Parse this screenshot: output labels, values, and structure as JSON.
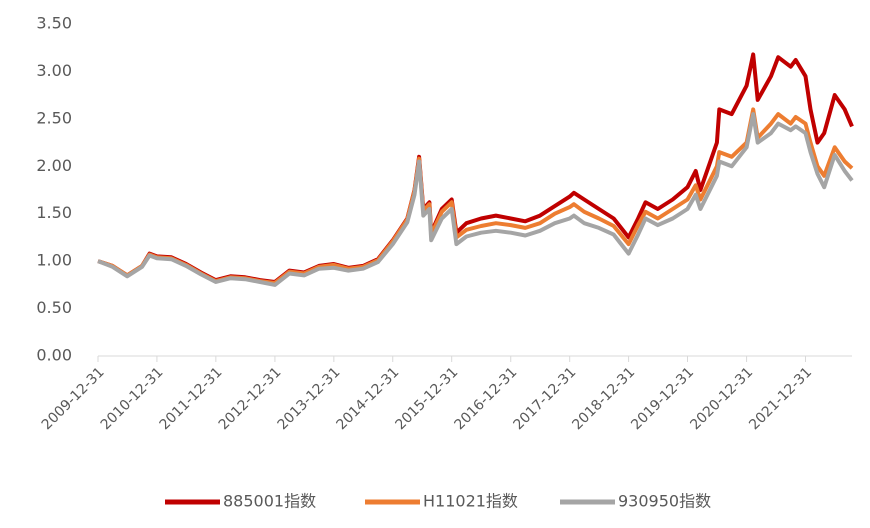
{
  "chart_data": {
    "type": "line",
    "x": [
      "2009-12-31",
      "2010-03-31",
      "2010-06-30",
      "2010-09-30",
      "2010-11-15",
      "2010-12-31",
      "2011-03-31",
      "2011-06-30",
      "2011-09-30",
      "2011-12-31",
      "2012-03-31",
      "2012-06-30",
      "2012-09-30",
      "2012-12-31",
      "2013-03-31",
      "2013-06-30",
      "2013-09-30",
      "2013-12-31",
      "2014-03-31",
      "2014-06-30",
      "2014-09-30",
      "2014-12-31",
      "2015-03-31",
      "2015-05-15",
      "2015-06-12",
      "2015-07-08",
      "2015-08-15",
      "2015-08-26",
      "2015-10-31",
      "2015-12-31",
      "2016-01-29",
      "2016-03-31",
      "2016-06-30",
      "2016-09-30",
      "2016-12-31",
      "2017-03-31",
      "2017-06-30",
      "2017-09-30",
      "2017-12-31",
      "2018-01-26",
      "2018-03-31",
      "2018-06-30",
      "2018-09-30",
      "2018-12-31",
      "2019-02-28",
      "2019-04-15",
      "2019-06-30",
      "2019-09-30",
      "2019-12-31",
      "2020-02-20",
      "2020-03-20",
      "2020-06-30",
      "2020-07-15",
      "2020-09-30",
      "2020-12-31",
      "2021-02-10",
      "2021-03-10",
      "2021-05-31",
      "2021-07-15",
      "2021-09-30",
      "2021-10-31",
      "2021-12-31",
      "2022-01-31",
      "2022-03-15",
      "2022-04-26",
      "2022-06-30",
      "2022-08-31",
      "2022-10-15"
    ],
    "series": [
      {
        "name": "885001指数",
        "color": "#c00000",
        "values": [
          1.0,
          0.95,
          0.85,
          0.95,
          1.08,
          1.05,
          1.04,
          0.97,
          0.88,
          0.8,
          0.84,
          0.83,
          0.8,
          0.78,
          0.9,
          0.88,
          0.95,
          0.97,
          0.93,
          0.95,
          1.02,
          1.22,
          1.45,
          1.75,
          2.1,
          1.55,
          1.62,
          1.3,
          1.55,
          1.65,
          1.3,
          1.4,
          1.45,
          1.48,
          1.45,
          1.42,
          1.48,
          1.58,
          1.68,
          1.72,
          1.65,
          1.55,
          1.45,
          1.25,
          1.45,
          1.62,
          1.55,
          1.65,
          1.78,
          1.95,
          1.75,
          2.25,
          2.6,
          2.55,
          2.85,
          3.18,
          2.7,
          2.95,
          3.15,
          3.05,
          3.12,
          2.95,
          2.6,
          2.25,
          2.35,
          2.75,
          2.6,
          2.42
        ]
      },
      {
        "name": "H11021指数",
        "color": "#ed7d31",
        "values": [
          1.0,
          0.95,
          0.85,
          0.95,
          1.07,
          1.04,
          1.03,
          0.96,
          0.87,
          0.79,
          0.83,
          0.82,
          0.79,
          0.77,
          0.89,
          0.87,
          0.94,
          0.96,
          0.92,
          0.94,
          1.01,
          1.21,
          1.44,
          1.74,
          2.08,
          1.53,
          1.6,
          1.28,
          1.52,
          1.62,
          1.25,
          1.33,
          1.37,
          1.4,
          1.38,
          1.35,
          1.4,
          1.5,
          1.57,
          1.6,
          1.52,
          1.45,
          1.37,
          1.18,
          1.38,
          1.52,
          1.45,
          1.55,
          1.65,
          1.8,
          1.65,
          2.0,
          2.15,
          2.1,
          2.25,
          2.6,
          2.3,
          2.45,
          2.55,
          2.45,
          2.52,
          2.45,
          2.25,
          2.0,
          1.9,
          2.2,
          2.05,
          1.98
        ]
      },
      {
        "name": "930950指数",
        "color": "#a5a5a5",
        "values": [
          1.0,
          0.94,
          0.84,
          0.94,
          1.06,
          1.03,
          1.02,
          0.95,
          0.86,
          0.78,
          0.82,
          0.81,
          0.78,
          0.75,
          0.87,
          0.85,
          0.92,
          0.93,
          0.9,
          0.92,
          0.99,
          1.18,
          1.41,
          1.7,
          2.05,
          1.48,
          1.55,
          1.22,
          1.45,
          1.55,
          1.18,
          1.26,
          1.3,
          1.32,
          1.3,
          1.27,
          1.32,
          1.4,
          1.45,
          1.48,
          1.4,
          1.35,
          1.28,
          1.08,
          1.28,
          1.45,
          1.38,
          1.45,
          1.55,
          1.7,
          1.55,
          1.9,
          2.05,
          2.0,
          2.2,
          2.55,
          2.25,
          2.35,
          2.45,
          2.38,
          2.42,
          2.35,
          2.15,
          1.92,
          1.78,
          2.12,
          1.95,
          1.85
        ]
      }
    ],
    "xlim": [
      "2009-12-31",
      "2022-10-15"
    ],
    "xticks": [
      "2009-12-31",
      "2010-12-31",
      "2011-12-31",
      "2012-12-31",
      "2013-12-31",
      "2014-12-31",
      "2015-12-31",
      "2016-12-31",
      "2017-12-31",
      "2018-12-31",
      "2019-12-31",
      "2020-12-31",
      "2021-12-31"
    ],
    "ylim": [
      0,
      3.5
    ],
    "yticks": [
      {
        "value": 0,
        "label": "0.00"
      },
      {
        "value": 0.5,
        "label": "0.50"
      },
      {
        "value": 1,
        "label": "1.00"
      },
      {
        "value": 1.5,
        "label": "1.50"
      },
      {
        "value": 2,
        "label": "2.00"
      },
      {
        "value": 2.5,
        "label": "2.50"
      },
      {
        "value": 3,
        "label": "3.00"
      },
      {
        "value": 3.5,
        "label": "3.50"
      }
    ],
    "legend": "bottom"
  }
}
